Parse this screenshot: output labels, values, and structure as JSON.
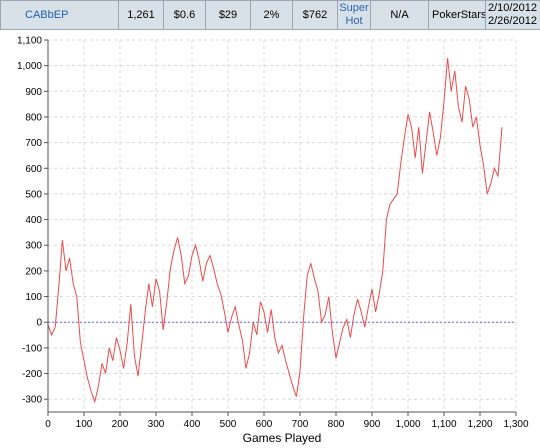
{
  "stats_row": {
    "player": "CABbEP",
    "hands": "1,261",
    "stake": "$0.6",
    "value_a": "$29",
    "percent": "2%",
    "value_b": "$762",
    "game_type_line1": "Super",
    "game_type_line2": "Hot",
    "na": "N/A",
    "site": "PokerStars",
    "date_start": "2/10/2012",
    "date_end": "2/26/2012"
  },
  "chart_data": {
    "type": "line",
    "xlabel": "Games Played",
    "ylabel": "",
    "xlim": [
      0,
      1300
    ],
    "ylim": [
      -350,
      1100
    ],
    "x_ticks": [
      0,
      100,
      200,
      300,
      400,
      500,
      600,
      700,
      800,
      900,
      1000,
      1100,
      1200,
      1300
    ],
    "x_tick_labels": [
      "0",
      "100",
      "200",
      "300",
      "400",
      "500",
      "600",
      "700",
      "800",
      "900",
      "1,000",
      "1,100",
      "1,200",
      "1,300"
    ],
    "y_ticks": [
      1100,
      1000,
      900,
      800,
      700,
      600,
      500,
      400,
      300,
      200,
      100,
      0,
      -100,
      -200,
      -300
    ],
    "y_tick_labels": [
      "1,100",
      "1,000",
      "900",
      "800",
      "700",
      "600",
      "500",
      "400",
      "300",
      "200",
      "100",
      "0",
      "-100",
      "-200",
      "-300"
    ],
    "grid": true,
    "baseline": 0,
    "colors": {
      "line": "#f04a4a",
      "baseline": "#6a6ae0",
      "grid": "#d8d8d8"
    },
    "series": [
      {
        "x": [
          0,
          10,
          20,
          30,
          40,
          50,
          60,
          70,
          80,
          90,
          100,
          110,
          120,
          130,
          140,
          150,
          160,
          170,
          180,
          190,
          200,
          210,
          220,
          230,
          240,
          250,
          260,
          270,
          280,
          290,
          300,
          310,
          320,
          330,
          340,
          350,
          360,
          370,
          380,
          390,
          400,
          410,
          420,
          430,
          440,
          450,
          460,
          470,
          480,
          490,
          500,
          510,
          520,
          530,
          540,
          550,
          560,
          570,
          580,
          590,
          600,
          610,
          620,
          630,
          640,
          650,
          660,
          670,
          680,
          690,
          700,
          710,
          720,
          730,
          740,
          750,
          760,
          770,
          780,
          790,
          800,
          810,
          820,
          830,
          840,
          850,
          860,
          870,
          880,
          890,
          900,
          910,
          920,
          930,
          940,
          950,
          960,
          970,
          980,
          990,
          1000,
          1010,
          1020,
          1030,
          1040,
          1050,
          1060,
          1070,
          1080,
          1090,
          1100,
          1110,
          1120,
          1130,
          1140,
          1150,
          1160,
          1170,
          1180,
          1190,
          1200,
          1210,
          1220,
          1230,
          1240,
          1250,
          1261
        ],
        "y": [
          -10,
          -50,
          -20,
          140,
          320,
          200,
          250,
          150,
          100,
          -80,
          -150,
          -220,
          -270,
          -310,
          -250,
          -160,
          -200,
          -100,
          -150,
          -60,
          -110,
          -180,
          -80,
          70,
          -130,
          -210,
          -90,
          40,
          150,
          60,
          170,
          120,
          -30,
          80,
          210,
          280,
          330,
          260,
          150,
          180,
          260,
          300,
          240,
          160,
          230,
          260,
          210,
          150,
          110,
          40,
          -40,
          20,
          60,
          -10,
          -70,
          -180,
          -120,
          0,
          -50,
          80,
          40,
          -40,
          50,
          -60,
          -120,
          -90,
          -150,
          -200,
          -250,
          -290,
          -190,
          20,
          180,
          230,
          170,
          120,
          0,
          30,
          100,
          -40,
          -140,
          -80,
          -20,
          10,
          -60,
          30,
          90,
          40,
          -20,
          60,
          130,
          40,
          110,
          200,
          400,
          460,
          480,
          500,
          620,
          720,
          810,
          760,
          640,
          760,
          580,
          700,
          820,
          740,
          650,
          720,
          860,
          1030,
          900,
          980,
          840,
          780,
          920,
          870,
          760,
          800,
          690,
          610,
          500,
          540,
          600,
          570,
          760
        ]
      }
    ]
  }
}
